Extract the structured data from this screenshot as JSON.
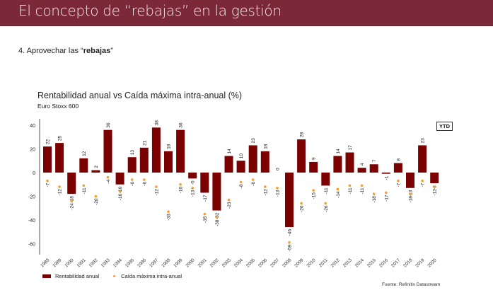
{
  "header": {
    "title": "El concepto de “rebajas” en la gestión"
  },
  "section": {
    "prefix": "4. Aprovechar las “",
    "bold": "rebajas",
    "suffix": "”"
  },
  "chart_data": {
    "type": "bar",
    "title": "Rentabilidad anual vs Caída máxima intra-anual (%)",
    "subtitle": "Euro Stoxx 600",
    "xlabel": "",
    "ylabel": "",
    "ylim": [
      -70,
      45
    ],
    "yticks": [
      40,
      20,
      0,
      -20,
      -40,
      -60
    ],
    "grid": false,
    "legend_position": "bottom-left",
    "categories": [
      "1988",
      "1989",
      "1990",
      "1991",
      "1992",
      "1993",
      "1994",
      "1995",
      "1996",
      "1997",
      "1998",
      "1999",
      "2000",
      "2001",
      "2002",
      "2003",
      "2004",
      "2005",
      "2006",
      "2007",
      "2008",
      "2009",
      "2010",
      "2011",
      "2012",
      "2013",
      "2014",
      "2015",
      "2016",
      "2017",
      "2018",
      "2019",
      "2020"
    ],
    "series": [
      {
        "name": "Rentabilidad anual",
        "kind": "bar",
        "color": "#7b0000",
        "values": [
          22,
          25,
          -18,
          12,
          2,
          36,
          -10,
          13,
          21,
          38,
          18,
          36,
          -5,
          -17,
          -32,
          14,
          10,
          23,
          18,
          0,
          -46,
          28,
          9,
          -11,
          14,
          17,
          4,
          7,
          -1,
          8,
          -13,
          23,
          -9
        ]
      },
      {
        "name": "Caída máxima intra-anual",
        "kind": "point",
        "color": "#f0a030",
        "values": [
          -7,
          -12,
          -24,
          -11,
          -20,
          -4,
          -16,
          -6,
          -6,
          -12,
          -33,
          -10,
          -13,
          -35,
          -38,
          -23,
          -8,
          -6,
          -12,
          -13,
          -59,
          -26,
          -15,
          -26,
          -14,
          -11,
          -11,
          -18,
          -17,
          -7,
          -18,
          -7,
          -12
        ]
      }
    ],
    "annotation": "YTD",
    "source": "Fuente: Refinitiv Datastream"
  }
}
